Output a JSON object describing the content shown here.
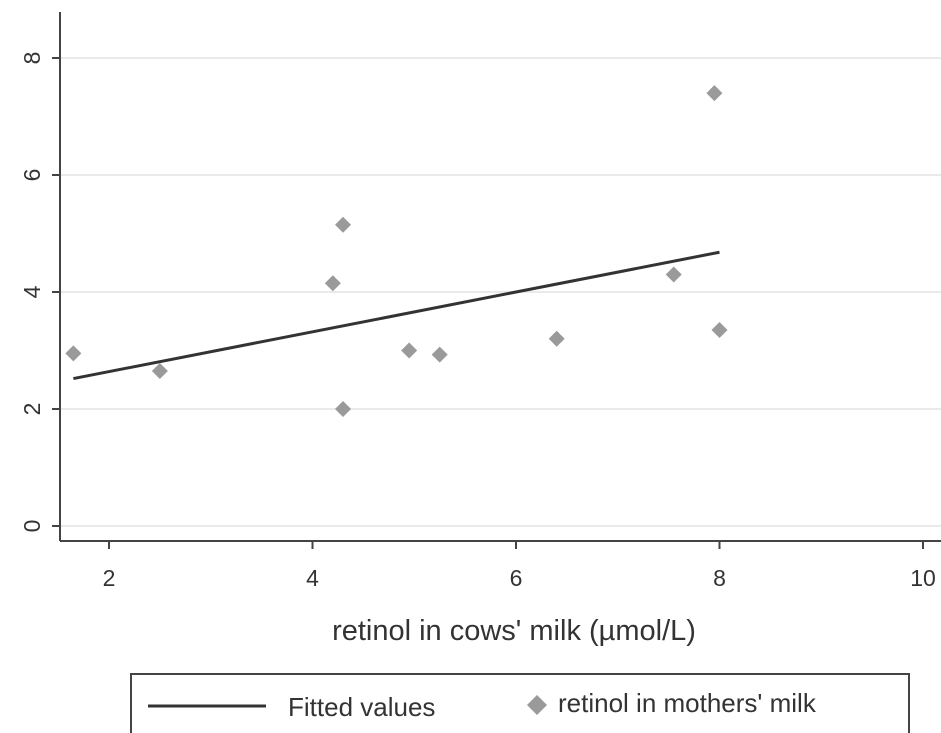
{
  "chart_data": {
    "type": "scatter",
    "title": "",
    "xlabel": "retinol in cows' milk (µmol/L)",
    "ylabel": "",
    "xlim": [
      1.6,
      10.1
    ],
    "ylim": [
      -0.3,
      8.8
    ],
    "xticks": [
      2,
      4,
      6,
      8,
      10
    ],
    "yticks": [
      0,
      2,
      4,
      6,
      8
    ],
    "grid": "horizontal",
    "legend_position": "bottom",
    "series": [
      {
        "name": "Fitted values",
        "kind": "line",
        "color": "#333333",
        "x": [
          1.65,
          8.0
        ],
        "y": [
          2.52,
          4.68
        ]
      },
      {
        "name": "retinol in mothers' milk",
        "kind": "scatter",
        "marker": "diamond",
        "color": "#9a9a9a",
        "x": [
          1.65,
          2.5,
          4.2,
          4.3,
          4.3,
          4.95,
          5.25,
          6.4,
          7.55,
          7.95,
          8.0
        ],
        "y": [
          2.95,
          2.65,
          4.15,
          5.15,
          2.0,
          3.0,
          2.93,
          3.2,
          4.3,
          7.4,
          3.35
        ]
      }
    ]
  }
}
